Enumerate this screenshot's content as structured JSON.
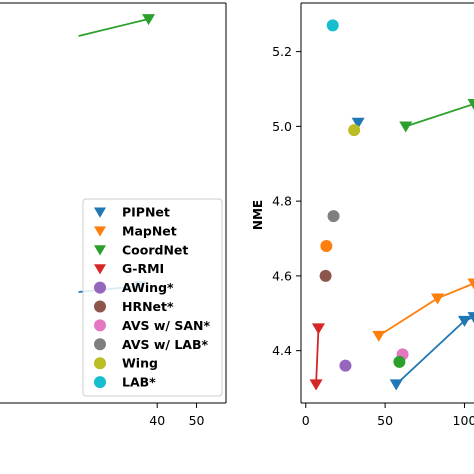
{
  "chart_data": [
    {
      "type": "scatter",
      "panel": "left",
      "title": "",
      "xlabel": "",
      "ylabel": "",
      "xlim": [
        0,
        57.5
      ],
      "x_ticks": [
        40,
        50
      ],
      "legend_position": "lower-right",
      "colors": {
        "PIPNet": "#1f77b4",
        "MapNet": "#ff7f0e",
        "CoordNet": "#2ca02c",
        "G-RMI": "#d62728",
        "AWing*": "#9467bd",
        "HRNet*": "#8c564b",
        "AVS w/ SAN*": "#e377c2",
        "AVS w/ LAB*": "#7f7f7f",
        "Wing": "#bcbd22",
        "LAB*": "#17becf"
      },
      "legend": [
        {
          "label": "PIPNet",
          "marker": "triangle-down"
        },
        {
          "label": "MapNet",
          "marker": "triangle-down"
        },
        {
          "label": "CoordNet",
          "marker": "triangle-down"
        },
        {
          "label": "G-RMI",
          "marker": "triangle-down"
        },
        {
          "label": "AWing*",
          "marker": "circle"
        },
        {
          "label": "HRNet*",
          "marker": "circle"
        },
        {
          "label": "AVS w/ SAN*",
          "marker": "circle"
        },
        {
          "label": "AVS w/ LAB*",
          "marker": "circle"
        },
        {
          "label": "Wing",
          "marker": "circle"
        },
        {
          "label": "LAB*",
          "marker": "circle"
        }
      ],
      "series": [
        {
          "series": "CoordNet",
          "marker": "triangle-down",
          "line": true,
          "points": [
            [
              20.0,
              null
            ],
            [
              37.8,
              null
            ]
          ]
        },
        {
          "series": "PIPNet",
          "marker": "triangle-down",
          "line": true,
          "points": [
            [
              20.0,
              null
            ],
            [
              35.6,
              null
            ]
          ]
        }
      ]
    },
    {
      "type": "scatter",
      "panel": "right",
      "title": "",
      "xlabel": "",
      "ylabel": "NME",
      "xlim": [
        -3,
        106
      ],
      "ylim": [
        4.26,
        5.33
      ],
      "x_ticks": [
        0,
        50,
        100
      ],
      "x_tick_labels": [
        "0",
        "50",
        "100"
      ],
      "y_ticks": [
        4.4,
        4.6,
        4.8,
        5.0,
        5.2
      ],
      "y_tick_labels": [
        "4.4",
        "4.6",
        "4.8",
        "5.0",
        "5.2"
      ],
      "series": [
        {
          "series": "LAB*",
          "marker": "circle",
          "line": false,
          "points": [
            [
              17,
              5.27
            ]
          ]
        },
        {
          "series": "PIPNet",
          "marker": "triangle-down",
          "line": false,
          "points": [
            [
              33,
              5.01
            ]
          ]
        },
        {
          "series": "Wing",
          "marker": "circle",
          "line": false,
          "points": [
            [
              30.5,
              4.99
            ]
          ]
        },
        {
          "series": "AVS w/ LAB*",
          "marker": "circle",
          "line": false,
          "points": [
            [
              17.5,
              4.76
            ]
          ]
        },
        {
          "series": "MapNet",
          "marker": "circle",
          "line": false,
          "points": [
            [
              13,
              4.68
            ]
          ]
        },
        {
          "series": "HRNet*",
          "marker": "circle",
          "line": false,
          "points": [
            [
              12.5,
              4.6
            ]
          ]
        },
        {
          "series": "AWing*",
          "marker": "circle",
          "line": false,
          "points": [
            [
              25,
              4.36
            ]
          ]
        },
        {
          "series": "AVS w/ SAN*",
          "marker": "circle",
          "line": false,
          "points": [
            [
              61,
              4.39
            ]
          ]
        },
        {
          "series": "CoordNet",
          "marker": "circle",
          "line": false,
          "points": [
            [
              59,
              4.37
            ]
          ]
        },
        {
          "series": "CoordNet",
          "marker": "triangle-down",
          "line": true,
          "points": [
            [
              63,
              5.0
            ],
            [
              106,
              5.06
            ]
          ]
        },
        {
          "series": "MapNet",
          "marker": "triangle-down",
          "line": true,
          "points": [
            [
              46,
              4.44
            ],
            [
              83,
              4.54
            ],
            [
              106,
              4.58
            ]
          ]
        },
        {
          "series": "PIPNet",
          "marker": "triangle-down",
          "line": true,
          "points": [
            [
              57,
              4.31
            ],
            [
              100,
              4.48
            ],
            [
              106,
              4.49
            ]
          ]
        },
        {
          "series": "G-RMI",
          "marker": "triangle-down",
          "line": true,
          "points": [
            [
              8,
              4.46
            ],
            [
              6.5,
              4.31
            ]
          ]
        }
      ]
    }
  ]
}
